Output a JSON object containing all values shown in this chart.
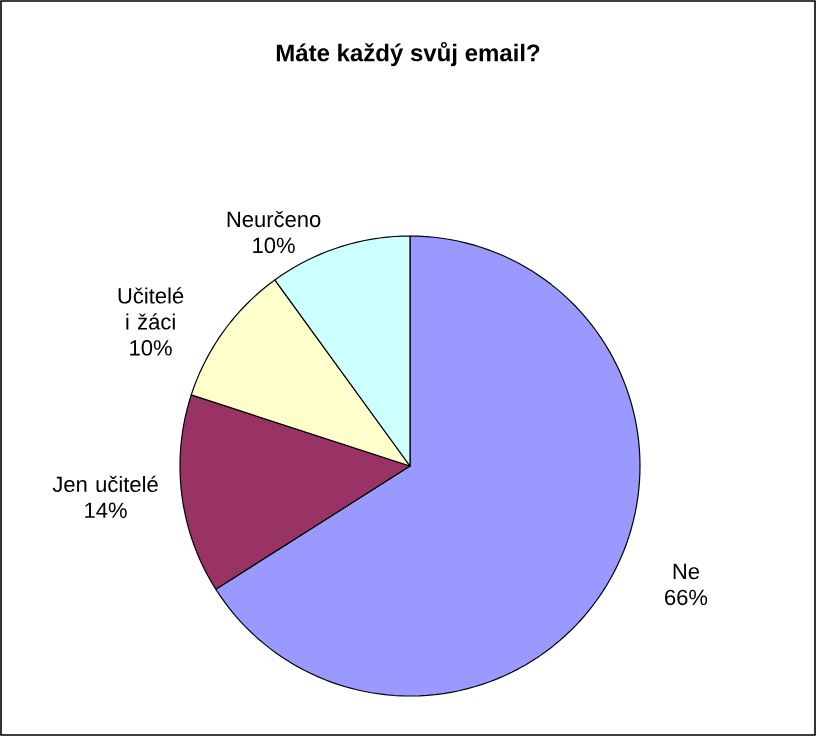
{
  "chart_data": {
    "type": "pie",
    "title": "Máte každý svůj email?",
    "categories": [
      "Ne",
      "Jen učitelé",
      "Učitelé i žáci",
      "Neurčeno"
    ],
    "values": [
      66,
      14,
      10,
      10
    ],
    "value_labels": [
      "66%",
      "14%",
      "10%",
      "10%"
    ],
    "colors": [
      "#9999ff",
      "#993366",
      "#ffffcc",
      "#ccffff"
    ]
  }
}
